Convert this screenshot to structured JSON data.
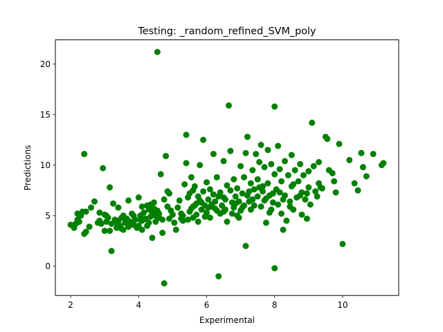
{
  "chart_data": {
    "type": "scatter",
    "title": "Testing: _random_refined_SVM_poly",
    "xlabel": "Experimental",
    "ylabel": "Predictions",
    "xlim": [
      1.55,
      11.65
    ],
    "ylim": [
      -2.9,
      22.4
    ],
    "xticks": [
      2,
      4,
      6,
      8,
      10
    ],
    "yticks": [
      0,
      5,
      10,
      15,
      20
    ],
    "grid": false,
    "legend": "none",
    "marker_color": "#008000",
    "points": [
      [
        2.0,
        4.1
      ],
      [
        2.1,
        3.8
      ],
      [
        2.15,
        4.2
      ],
      [
        2.2,
        4.6
      ],
      [
        2.25,
        4.4
      ],
      [
        2.2,
        5.2
      ],
      [
        2.3,
        5.0
      ],
      [
        2.35,
        5.4
      ],
      [
        2.4,
        11.1
      ],
      [
        2.45,
        5.4
      ],
      [
        2.4,
        3.2
      ],
      [
        2.45,
        3.4
      ],
      [
        2.55,
        3.9
      ],
      [
        2.7,
        6.4
      ],
      [
        2.8,
        4.3
      ],
      [
        2.85,
        5.3
      ],
      [
        2.9,
        4.2
      ],
      [
        2.95,
        9.7
      ],
      [
        3.0,
        3.5
      ],
      [
        3.05,
        4.4
      ],
      [
        3.05,
        5.0
      ],
      [
        3.1,
        4.8
      ],
      [
        3.15,
        7.8
      ],
      [
        3.15,
        3.5
      ],
      [
        3.2,
        4.2
      ],
      [
        3.25,
        6.2
      ],
      [
        3.3,
        4.6
      ],
      [
        3.35,
        3.8
      ],
      [
        3.4,
        5.8
      ],
      [
        3.4,
        4.5
      ],
      [
        3.45,
        4.0
      ],
      [
        3.5,
        4.8
      ],
      [
        3.5,
        3.7
      ],
      [
        3.55,
        5.0
      ],
      [
        3.6,
        4.3
      ],
      [
        3.65,
        4.7
      ],
      [
        3.7,
        6.5
      ],
      [
        3.7,
        3.9
      ],
      [
        3.75,
        4.4
      ],
      [
        3.8,
        5.2
      ],
      [
        3.85,
        4.1
      ],
      [
        3.9,
        4.6
      ],
      [
        3.95,
        3.8
      ],
      [
        4.0,
        6.8
      ],
      [
        4.0,
        4.0
      ],
      [
        4.05,
        5.0
      ],
      [
        4.1,
        4.5
      ],
      [
        4.1,
        3.6
      ],
      [
        4.15,
        5.3
      ],
      [
        4.2,
        4.7
      ],
      [
        4.25,
        6.0
      ],
      [
        4.3,
        5.6
      ],
      [
        4.3,
        4.3
      ],
      [
        4.35,
        4.9
      ],
      [
        4.4,
        5.2
      ],
      [
        4.4,
        2.8
      ],
      [
        4.45,
        6.3
      ],
      [
        4.5,
        5.0
      ],
      [
        4.5,
        4.4
      ],
      [
        4.55,
        21.2
      ],
      [
        4.55,
        5.5
      ],
      [
        4.6,
        4.8
      ],
      [
        4.65,
        9.1
      ],
      [
        4.7,
        4.6
      ],
      [
        4.7,
        3.3
      ],
      [
        4.75,
        -1.7
      ],
      [
        4.75,
        6.6
      ],
      [
        4.8,
        10.9
      ],
      [
        4.85,
        5.9
      ],
      [
        4.85,
        7.4
      ],
      [
        4.9,
        7.2
      ],
      [
        4.9,
        4.7
      ],
      [
        3.2,
        1.5
      ],
      [
        3.55,
        3.6
      ],
      [
        3.0,
        5.1
      ],
      [
        2.6,
        5.8
      ],
      [
        4.1,
        5.9
      ],
      [
        4.35,
        6.1
      ],
      [
        4.6,
        5.2
      ],
      [
        4.25,
        4.0
      ],
      [
        5.0,
        5.1
      ],
      [
        5.05,
        4.3
      ],
      [
        5.1,
        3.6
      ],
      [
        5.15,
        5.8
      ],
      [
        5.2,
        6.5
      ],
      [
        5.25,
        5.2
      ],
      [
        5.3,
        4.5
      ],
      [
        5.35,
        8.1
      ],
      [
        5.4,
        13.0
      ],
      [
        5.4,
        10.2
      ],
      [
        5.45,
        6.8
      ],
      [
        5.5,
        7.2
      ],
      [
        5.5,
        5.4
      ],
      [
        5.55,
        8.8
      ],
      [
        5.6,
        5.9
      ],
      [
        5.6,
        4.8
      ],
      [
        5.65,
        7.9
      ],
      [
        5.7,
        6.2
      ],
      [
        5.7,
        5.1
      ],
      [
        5.75,
        4.4
      ],
      [
        5.8,
        10.0
      ],
      [
        5.8,
        6.5
      ],
      [
        5.85,
        5.6
      ],
      [
        5.9,
        12.5
      ],
      [
        5.9,
        7.4
      ],
      [
        5.95,
        6.0
      ],
      [
        6.0,
        8.3
      ],
      [
        6.0,
        5.3
      ],
      [
        6.05,
        6.6
      ],
      [
        6.1,
        7.6
      ],
      [
        6.1,
        4.8
      ],
      [
        6.15,
        5.9
      ],
      [
        6.2,
        11.1
      ],
      [
        6.2,
        7.1
      ],
      [
        6.25,
        6.4
      ],
      [
        6.3,
        5.5
      ],
      [
        6.3,
        8.8
      ],
      [
        6.35,
        -1.0
      ],
      [
        6.4,
        7.3
      ],
      [
        6.4,
        5.2
      ],
      [
        6.45,
        6.0
      ],
      [
        6.5,
        10.4
      ],
      [
        6.5,
        6.8
      ],
      [
        6.55,
        5.6
      ],
      [
        6.6,
        8.0
      ],
      [
        6.6,
        4.4
      ],
      [
        6.65,
        15.9
      ],
      [
        6.7,
        11.4
      ],
      [
        6.7,
        7.5
      ],
      [
        6.75,
        6.3
      ],
      [
        6.8,
        5.8
      ],
      [
        6.8,
        8.6
      ],
      [
        6.85,
        6.9
      ],
      [
        6.9,
        5.0
      ],
      [
        6.9,
        7.7
      ],
      [
        6.95,
        6.4
      ],
      [
        7.0,
        9.9
      ],
      [
        7.0,
        5.5
      ],
      [
        7.05,
        7.2
      ],
      [
        7.1,
        6.0
      ],
      [
        7.1,
        8.8
      ],
      [
        7.15,
        11.2
      ],
      [
        7.15,
        2.0
      ],
      [
        7.2,
        12.8
      ],
      [
        7.2,
        7.0
      ],
      [
        7.25,
        6.4
      ],
      [
        7.3,
        8.2
      ],
      [
        7.3,
        5.6
      ],
      [
        7.35,
        9.5
      ],
      [
        7.4,
        7.6
      ],
      [
        7.4,
        6.0
      ],
      [
        7.45,
        11.1
      ],
      [
        7.5,
        8.6
      ],
      [
        7.5,
        6.9
      ],
      [
        7.55,
        10.3
      ],
      [
        7.6,
        12.0
      ],
      [
        7.6,
        5.9
      ],
      [
        7.65,
        7.4
      ],
      [
        7.7,
        9.8
      ],
      [
        7.7,
        6.5
      ],
      [
        7.75,
        4.3
      ],
      [
        7.8,
        11.5
      ],
      [
        7.8,
        8.2
      ],
      [
        7.85,
        7.0
      ],
      [
        7.9,
        5.6
      ],
      [
        7.9,
        10.1
      ],
      [
        7.95,
        6.3
      ],
      [
        8.0,
        15.8
      ],
      [
        8.0,
        9.1
      ],
      [
        8.0,
        -0.2
      ],
      [
        8.05,
        7.6
      ],
      [
        8.1,
        11.9
      ],
      [
        8.1,
        6.1
      ],
      [
        8.15,
        9.6
      ],
      [
        8.2,
        8.4
      ],
      [
        8.2,
        5.2
      ],
      [
        8.25,
        3.6
      ],
      [
        8.3,
        10.4
      ],
      [
        8.3,
        7.0
      ],
      [
        8.35,
        4.5
      ],
      [
        8.4,
        9.0
      ],
      [
        8.45,
        6.4
      ],
      [
        8.5,
        11.0
      ],
      [
        8.5,
        7.9
      ],
      [
        8.55,
        5.6
      ],
      [
        8.6,
        9.5
      ],
      [
        8.65,
        6.8
      ],
      [
        8.7,
        8.4
      ],
      [
        8.75,
        10.1
      ],
      [
        8.8,
        5.1
      ],
      [
        8.8,
        7.3
      ],
      [
        8.85,
        9.0
      ],
      [
        8.9,
        6.6
      ],
      [
        8.95,
        4.7
      ],
      [
        9.0,
        9.4
      ],
      [
        9.0,
        7.8
      ],
      [
        9.05,
        6.1
      ],
      [
        9.1,
        14.2
      ],
      [
        9.15,
        9.9
      ],
      [
        9.2,
        7.4
      ],
      [
        9.25,
        6.9
      ],
      [
        9.3,
        10.3
      ],
      [
        9.3,
        8.2
      ],
      [
        9.4,
        7.7
      ],
      [
        9.5,
        12.8
      ],
      [
        9.55,
        12.6
      ],
      [
        9.6,
        9.5
      ],
      [
        9.7,
        9.2
      ],
      [
        9.75,
        8.4
      ],
      [
        9.8,
        7.3
      ],
      [
        9.9,
        12.1
      ],
      [
        10.0,
        2.2
      ],
      [
        10.2,
        10.5
      ],
      [
        10.35,
        8.2
      ],
      [
        10.45,
        7.5
      ],
      [
        10.55,
        11.2
      ],
      [
        10.6,
        9.8
      ],
      [
        10.7,
        8.9
      ],
      [
        10.9,
        11.1
      ],
      [
        11.15,
        10.0
      ],
      [
        11.2,
        10.2
      ],
      [
        5.3,
        5.0
      ],
      [
        5.55,
        5.7
      ],
      [
        5.75,
        6.9
      ],
      [
        6.05,
        5.8
      ],
      [
        6.35,
        6.9
      ],
      [
        6.75,
        5.2
      ],
      [
        7.05,
        5.8
      ],
      [
        7.35,
        6.6
      ],
      [
        7.65,
        7.9
      ],
      [
        7.95,
        7.2
      ],
      [
        8.25,
        6.6
      ],
      [
        8.55,
        8.1
      ],
      [
        6.5,
        5.4
      ],
      [
        5.95,
        4.9
      ],
      [
        5.25,
        4.7
      ],
      [
        4.95,
        5.5
      ],
      [
        5.65,
        6.0
      ],
      [
        6.25,
        5.7
      ],
      [
        6.85,
        6.2
      ],
      [
        7.25,
        7.4
      ],
      [
        7.75,
        6.7
      ],
      [
        8.15,
        7.3
      ],
      [
        8.75,
        7.0
      ],
      [
        5.85,
        6.3
      ],
      [
        6.15,
        6.1
      ],
      [
        6.55,
        6.6
      ],
      [
        7.55,
        7.8
      ],
      [
        4.45,
        5.7
      ],
      [
        4.05,
        4.6
      ],
      [
        3.85,
        5.0
      ],
      [
        3.35,
        4.3
      ],
      [
        2.85,
        4.5
      ],
      [
        5.45,
        4.6
      ],
      [
        6.95,
        4.8
      ],
      [
        7.85,
        5.3
      ],
      [
        8.45,
        5.9
      ],
      [
        8.95,
        7.2
      ],
      [
        9.35,
        7.8
      ],
      [
        5.6,
        7.5
      ]
    ]
  }
}
